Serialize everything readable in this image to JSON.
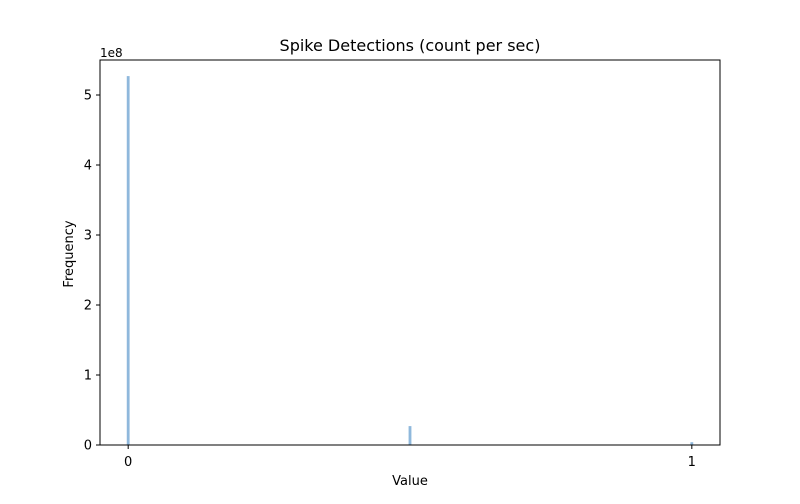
{
  "chart_data": {
    "type": "bar",
    "title": "Spike Detections (count per sec)",
    "xlabel": "Value",
    "ylabel": "Frequency",
    "y_offset_label": "1e8",
    "y_scale": 100000000,
    "xlim": [
      -0.05,
      1.05
    ],
    "ylim": [
      0,
      550000000
    ],
    "x_ticks": [
      {
        "value": 0,
        "label": "0"
      },
      {
        "value": 1,
        "label": "1"
      }
    ],
    "y_ticks": [
      {
        "value": 0,
        "label": "0"
      },
      {
        "value": 100000000,
        "label": "1"
      },
      {
        "value": 200000000,
        "label": "2"
      },
      {
        "value": 300000000,
        "label": "3"
      },
      {
        "value": 400000000,
        "label": "4"
      },
      {
        "value": 500000000,
        "label": "5"
      }
    ],
    "bin_width": 0.005,
    "bars": [
      {
        "x": 0,
        "value": 527000000
      },
      {
        "x": 0.5,
        "value": 27000000
      },
      {
        "x": 1,
        "value": 4000000
      }
    ],
    "bar_color": "#8fb8dc",
    "grid": false,
    "legend": "none"
  }
}
